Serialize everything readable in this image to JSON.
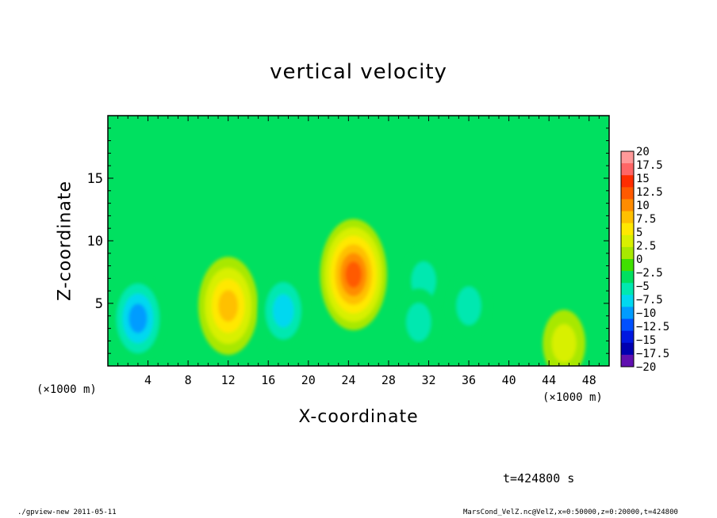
{
  "chart_data": {
    "type": "heatmap",
    "title": "vertical velocity",
    "xlabel": "X-coordinate",
    "ylabel": "Z-coordinate",
    "x_unit": "(×1000 m)",
    "y_unit": "",
    "xlim": [
      0,
      50
    ],
    "ylim": [
      0,
      20
    ],
    "x_ticks": [
      4,
      8,
      12,
      16,
      20,
      24,
      28,
      32,
      36,
      40,
      44,
      48
    ],
    "y_ticks": [
      5,
      10,
      15
    ],
    "colorbar": {
      "levels": [
        20,
        17.5,
        15,
        12.5,
        10,
        7.5,
        5,
        2.5,
        0,
        -2.5,
        -5,
        -7.5,
        -10,
        -12.5,
        -15,
        -17.5,
        -20
      ],
      "labels": [
        "20",
        "17.5",
        "15",
        "12.5",
        "10",
        "7.5",
        "5",
        "2.5",
        "0",
        "−2.5",
        "−5",
        "−7.5",
        "−10",
        "−12.5",
        "−15",
        "−17.5",
        "−20"
      ],
      "colors": [
        "#ff9999",
        "#ff6666",
        "#ff2d00",
        "#ff5a00",
        "#ff8c00",
        "#ffc000",
        "#ffe800",
        "#d8f000",
        "#a8e800",
        "#40e000",
        "#00e060",
        "#00e8b0",
        "#00d8f0",
        "#009cff",
        "#0050ff",
        "#0018e0",
        "#0000b0",
        "#6010b0"
      ],
      "legend_placement": "right"
    },
    "features": [
      {
        "x": 3,
        "z": 3.8,
        "value": -10
      },
      {
        "x": 12,
        "z": 4.8,
        "value": 12
      },
      {
        "x": 17.5,
        "z": 4.4,
        "value": -8
      },
      {
        "x": 24.5,
        "z": 7.3,
        "value": 15
      },
      {
        "x": 31.5,
        "z": 6.8,
        "value": -5
      },
      {
        "x": 31,
        "z": 3.5,
        "value": -5
      },
      {
        "x": 36,
        "z": 4.8,
        "value": -5
      },
      {
        "x": 45.5,
        "z": 1.8,
        "value": 5
      }
    ],
    "time_label": "t=424800 s"
  },
  "footer": {
    "left": "./gpview-new  2011-05-11",
    "right": "MarsCond_VelZ.nc@VelZ,x=0:50000,z=0:20000,t=424800"
  }
}
